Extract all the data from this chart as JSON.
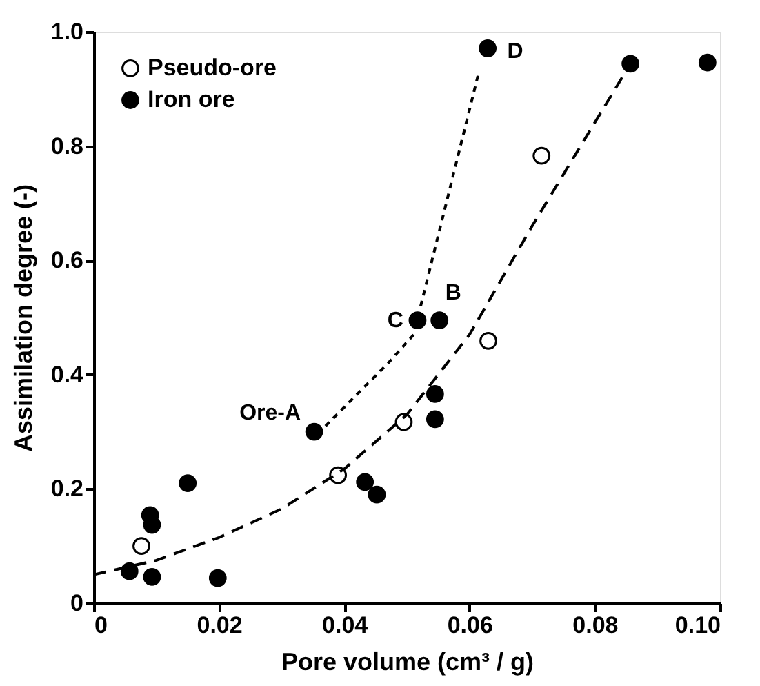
{
  "chart_data": {
    "type": "scatter",
    "xlabel": "Pore volume (cm³ / g)",
    "ylabel": "Assimilation degree (-)",
    "xlim": [
      0,
      0.1
    ],
    "ylim": [
      0,
      1.0
    ],
    "xticks": [
      {
        "value": 0,
        "label": "0"
      },
      0.02,
      0.04,
      0.06,
      0.08,
      {
        "value": 0.1,
        "label": "0.10"
      }
    ],
    "yticks": [
      {
        "value": 0,
        "label": "0"
      },
      0.2,
      0.4,
      0.6,
      0.8,
      {
        "value": 1.0,
        "label": "1.0"
      }
    ],
    "grid": false,
    "legend": "top left",
    "marker": "circle",
    "series": [
      {
        "name": "Pseudo-ore",
        "color": "#000000",
        "x": [
          0.0076,
          0.039,
          0.0495,
          0.063,
          0.0715
        ],
        "values": [
          0.1,
          0.224,
          0.317,
          0.459,
          0.783
        ]
      },
      {
        "name": "Iron ore",
        "color": "#000000",
        "x": [
          0.0057,
          0.0093,
          0.009,
          0.0093,
          0.015,
          0.0198,
          0.0352,
          0.0433,
          0.0452,
          0.0545,
          0.0545,
          0.0517,
          0.0552,
          0.0629,
          0.0857,
          0.098
        ],
        "values": [
          0.056,
          0.046,
          0.154,
          0.137,
          0.21,
          0.044,
          0.3,
          0.212,
          0.19,
          0.366,
          0.322,
          0.495,
          0.495,
          0.971,
          0.944,
          0.946
        ]
      },
      {
        "type": "line",
        "color": "#000000",
        "line_style": "dashed",
        "marker": "none",
        "x": [
          0,
          0.01,
          0.02,
          0.03,
          0.04,
          0.05,
          0.06,
          0.07,
          0.0857
        ],
        "values": [
          0.05,
          0.075,
          0.115,
          0.165,
          0.235,
          0.33,
          0.47,
          0.66,
          0.944
        ]
      },
      {
        "type": "line",
        "color": "#000000",
        "line_style": "dotted",
        "marker": "none",
        "x": [
          0.037,
          0.042,
          0.047,
          0.0515
        ],
        "values": [
          0.31,
          0.365,
          0.42,
          0.475
        ]
      },
      {
        "type": "line",
        "color": "#000000",
        "line_style": "dotted",
        "marker": "none",
        "x": [
          0.0522,
          0.0615
        ],
        "values": [
          0.52,
          0.93
        ]
      }
    ],
    "annotations": [
      {
        "text": "Ore-A",
        "x": 0.0352,
        "y": 0.3
      },
      {
        "text": "C",
        "x": 0.0517,
        "y": 0.495
      },
      {
        "text": "B",
        "x": 0.0552,
        "y": 0.495
      },
      {
        "text": "D",
        "x": 0.0629,
        "y": 0.971
      }
    ]
  }
}
